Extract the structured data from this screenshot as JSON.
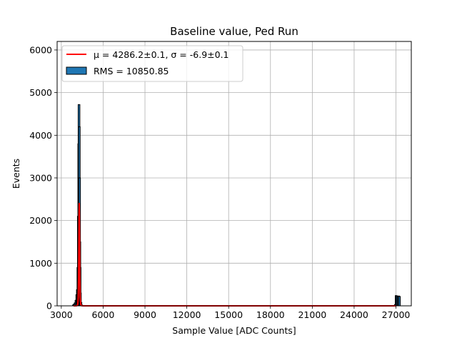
{
  "chart_data": {
    "type": "bar",
    "title": "Baseline value, Ped Run",
    "xlabel": "Sample Value [ADC Counts]",
    "ylabel": "Events",
    "xlim": [
      2700,
      28100
    ],
    "ylim": [
      0,
      6200
    ],
    "x_ticks": [
      3000,
      6000,
      9000,
      12000,
      15000,
      18000,
      21000,
      24000,
      27000
    ],
    "y_ticks": [
      0,
      1000,
      2000,
      3000,
      4000,
      5000,
      6000
    ],
    "grid": true,
    "legend_position": "top-left",
    "legend": [
      {
        "label": "μ = 4286.2±0.1, σ = -6.9±0.1",
        "kind": "line",
        "color": "#ff0000"
      },
      {
        "label": "RMS = 10850.85",
        "kind": "patch",
        "color": "#1f77b4"
      }
    ],
    "series": [
      {
        "kind": "histogram",
        "color": "#1f77b4",
        "edgecolor": "#000000",
        "bins": [
          {
            "x": 3870,
            "y": 20
          },
          {
            "x": 3930,
            "y": 40
          },
          {
            "x": 3990,
            "y": 70
          },
          {
            "x": 4050,
            "y": 130
          },
          {
            "x": 4110,
            "y": 260
          },
          {
            "x": 4150,
            "y": 380
          },
          {
            "x": 4190,
            "y": 900
          },
          {
            "x": 4220,
            "y": 2100
          },
          {
            "x": 4250,
            "y": 3800
          },
          {
            "x": 4270,
            "y": 4720
          },
          {
            "x": 4290,
            "y": 4200
          },
          {
            "x": 4310,
            "y": 3000
          },
          {
            "x": 4330,
            "y": 1500
          },
          {
            "x": 4350,
            "y": 900
          },
          {
            "x": 4370,
            "y": 300
          },
          {
            "x": 4410,
            "y": 80
          },
          {
            "x": 4460,
            "y": 20
          },
          {
            "x": 26950,
            "y": 30
          },
          {
            "x": 27010,
            "y": 240
          },
          {
            "x": 27070,
            "y": 230
          },
          {
            "x": 27130,
            "y": 210
          },
          {
            "x": 27190,
            "y": 230
          },
          {
            "x": 27250,
            "y": 220
          }
        ]
      },
      {
        "kind": "line",
        "color": "#ff0000",
        "x": [
          3880,
          4000,
          4100,
          4180,
          4215,
          4240,
          4262,
          4276,
          4286,
          4296,
          4310,
          4332,
          4357,
          4392,
          4472,
          4600,
          5000,
          27000
        ],
        "y": [
          0,
          0,
          2,
          30,
          200,
          700,
          1600,
          2200,
          2400,
          2200,
          1600,
          700,
          200,
          30,
          2,
          0,
          0,
          0
        ]
      }
    ]
  }
}
